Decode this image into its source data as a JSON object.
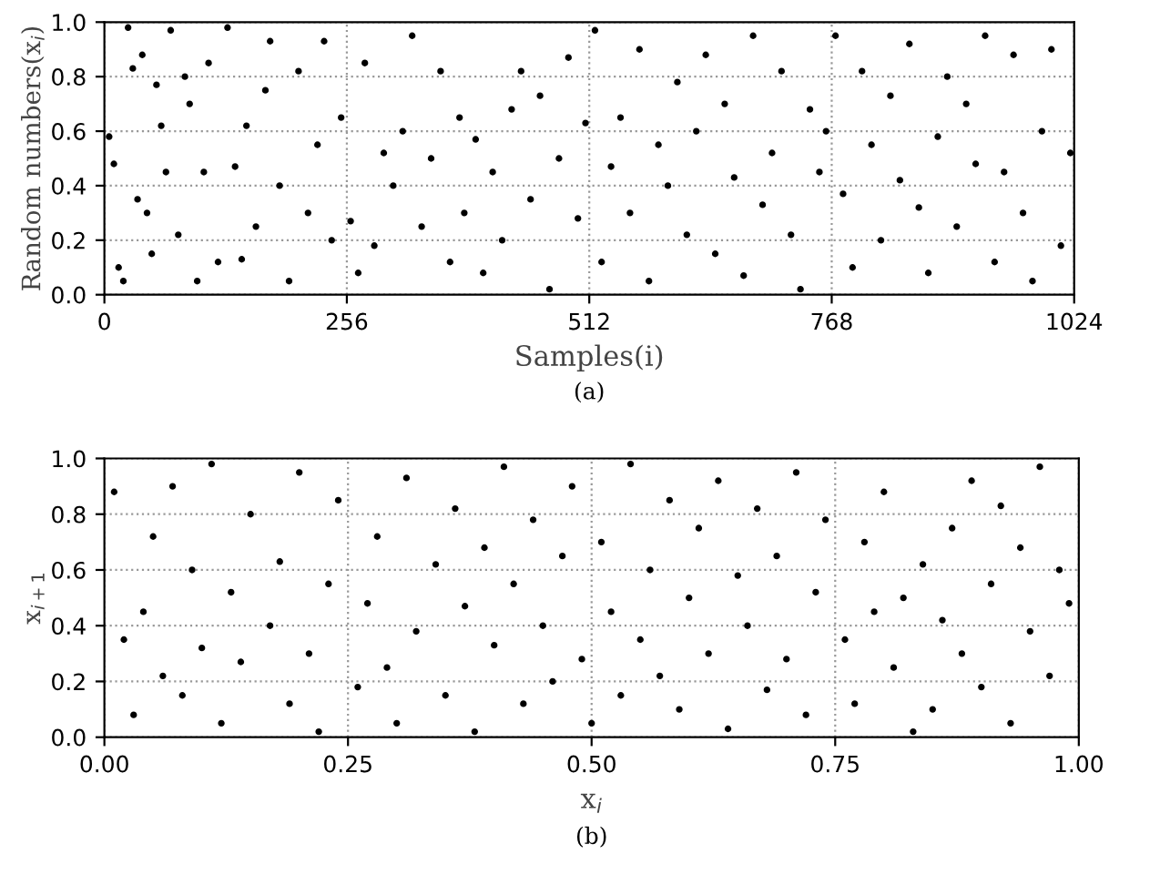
{
  "chart_data": [
    {
      "type": "scatter",
      "xlabel": "Samples(i)",
      "ylabel": "Random numbers(x$_{i}$)",
      "annotations": [
        "(a)"
      ],
      "grid": true,
      "marker": "circle",
      "color": "#000000",
      "x": [
        5,
        10,
        15,
        20,
        25,
        30,
        35,
        40,
        45,
        50,
        55,
        60,
        65,
        70,
        78,
        85,
        90,
        98,
        105,
        110,
        120,
        130,
        138,
        145,
        150,
        160,
        170,
        175,
        185,
        195,
        205,
        215,
        225,
        232,
        240,
        250,
        260,
        268,
        275,
        285,
        295,
        305,
        315,
        325,
        335,
        345,
        355,
        365,
        375,
        380,
        392,
        400,
        410,
        420,
        430,
        440,
        450,
        460,
        470,
        480,
        490,
        500,
        508,
        518,
        525,
        535,
        545,
        555,
        565,
        575,
        585,
        595,
        605,
        615,
        625,
        635,
        645,
        655,
        665,
        675,
        685,
        695,
        705,
        715,
        725,
        735,
        745,
        755,
        762,
        772,
        780,
        790,
        800,
        810,
        820,
        830,
        840,
        850,
        860,
        870,
        880,
        890,
        900,
        910,
        920,
        930,
        940,
        950,
        960,
        970,
        980,
        990,
        1000,
        1010,
        1020
      ],
      "values": [
        0.58,
        0.48,
        0.1,
        0.05,
        0.98,
        0.83,
        0.35,
        0.88,
        0.3,
        0.15,
        0.77,
        0.62,
        0.45,
        0.97,
        0.22,
        0.8,
        0.7,
        0.05,
        0.45,
        0.85,
        0.12,
        0.98,
        0.47,
        0.13,
        0.62,
        0.25,
        0.75,
        0.93,
        0.4,
        0.05,
        0.82,
        0.3,
        0.55,
        0.93,
        0.2,
        0.65,
        0.27,
        0.08,
        0.85,
        0.18,
        0.52,
        0.4,
        0.6,
        0.95,
        0.25,
        0.5,
        0.82,
        0.12,
        0.65,
        0.3,
        0.57,
        0.08,
        0.45,
        0.2,
        0.68,
        0.82,
        0.35,
        0.73,
        0.02,
        0.5,
        0.87,
        0.28,
        0.63,
        0.97,
        0.12,
        0.47,
        0.65,
        0.3,
        0.9,
        0.05,
        0.55,
        0.4,
        0.78,
        0.22,
        0.6,
        0.88,
        0.15,
        0.7,
        0.43,
        0.07,
        0.95,
        0.33,
        0.52,
        0.82,
        0.22,
        0.02,
        0.68,
        0.45,
        0.6,
        0.95,
        0.37,
        0.1,
        0.82,
        0.55,
        0.2,
        0.73,
        0.42,
        0.92,
        0.32,
        0.08,
        0.58,
        0.8,
        0.25,
        0.7,
        0.48,
        0.95,
        0.12,
        0.45,
        0.88,
        0.3,
        0.05,
        0.6,
        0.9,
        0.18,
        0.52
      ],
      "xlim": [
        0,
        1024
      ],
      "xticks": [
        0,
        256,
        512,
        768,
        1024
      ],
      "ylim": [
        0,
        1
      ],
      "yticks": [
        {
          "value": 0,
          "label": "0.0"
        },
        {
          "value": 0.2,
          "label": "0.2"
        },
        {
          "value": 0.4,
          "label": "0.4"
        },
        {
          "value": 0.6,
          "label": "0.6"
        },
        {
          "value": 0.8,
          "label": "0.8"
        },
        {
          "value": 1,
          "label": "1.0"
        }
      ]
    },
    {
      "type": "scatter",
      "xlabel": "x$_{i}$",
      "ylabel": "x$_{i+1}$",
      "annotations": [
        "(b)"
      ],
      "grid": true,
      "marker": "circle",
      "color": "#000000",
      "x": [
        0.01,
        0.02,
        0.03,
        0.04,
        0.05,
        0.06,
        0.07,
        0.08,
        0.09,
        0.1,
        0.11,
        0.12,
        0.13,
        0.14,
        0.15,
        0.17,
        0.18,
        0.19,
        0.2,
        0.21,
        0.22,
        0.23,
        0.24,
        0.26,
        0.27,
        0.28,
        0.29,
        0.3,
        0.31,
        0.32,
        0.34,
        0.35,
        0.36,
        0.37,
        0.38,
        0.39,
        0.4,
        0.41,
        0.42,
        0.43,
        0.44,
        0.45,
        0.46,
        0.47,
        0.48,
        0.49,
        0.5,
        0.51,
        0.52,
        0.53,
        0.54,
        0.55,
        0.56,
        0.57,
        0.58,
        0.59,
        0.6,
        0.61,
        0.62,
        0.63,
        0.64,
        0.65,
        0.66,
        0.67,
        0.68,
        0.69,
        0.7,
        0.71,
        0.72,
        0.73,
        0.74,
        0.76,
        0.77,
        0.78,
        0.79,
        0.8,
        0.81,
        0.82,
        0.83,
        0.84,
        0.85,
        0.86,
        0.87,
        0.88,
        0.89,
        0.9,
        0.91,
        0.92,
        0.93,
        0.94,
        0.95,
        0.96,
        0.97,
        0.98,
        0.99
      ],
      "values": [
        0.88,
        0.35,
        0.08,
        0.45,
        0.72,
        0.22,
        0.9,
        0.15,
        0.6,
        0.32,
        0.98,
        0.05,
        0.52,
        0.27,
        0.8,
        0.4,
        0.63,
        0.12,
        0.95,
        0.3,
        0.02,
        0.55,
        0.85,
        0.18,
        0.48,
        0.72,
        0.25,
        0.05,
        0.93,
        0.38,
        0.62,
        0.15,
        0.82,
        0.47,
        0.02,
        0.68,
        0.33,
        0.97,
        0.55,
        0.12,
        0.78,
        0.4,
        0.2,
        0.65,
        0.9,
        0.28,
        0.05,
        0.7,
        0.45,
        0.15,
        0.98,
        0.35,
        0.6,
        0.22,
        0.85,
        0.1,
        0.5,
        0.75,
        0.3,
        0.92,
        0.03,
        0.58,
        0.4,
        0.82,
        0.17,
        0.65,
        0.28,
        0.95,
        0.08,
        0.52,
        0.78,
        0.35,
        0.12,
        0.7,
        0.45,
        0.88,
        0.25,
        0.5,
        0.02,
        0.62,
        0.1,
        0.42,
        0.75,
        0.3,
        0.92,
        0.18,
        0.55,
        0.83,
        0.05,
        0.68,
        0.38,
        0.97,
        0.22,
        0.6,
        0.48
      ],
      "xlim": [
        0,
        1
      ],
      "ylim": [
        0,
        1
      ],
      "xticks": [
        {
          "value": 0,
          "label": "0.00"
        },
        {
          "value": 0.25,
          "label": "0.25"
        },
        {
          "value": 0.5,
          "label": "0.50"
        },
        {
          "value": 0.75,
          "label": "0.75"
        },
        {
          "value": 1,
          "label": "1.00"
        }
      ],
      "yticks": [
        {
          "value": 0,
          "label": "0.0"
        },
        {
          "value": 0.2,
          "label": "0.2"
        },
        {
          "value": 0.4,
          "label": "0.4"
        },
        {
          "value": 0.6,
          "label": "0.6"
        },
        {
          "value": 0.8,
          "label": "0.8"
        },
        {
          "value": 1,
          "label": "1.0"
        }
      ]
    }
  ]
}
